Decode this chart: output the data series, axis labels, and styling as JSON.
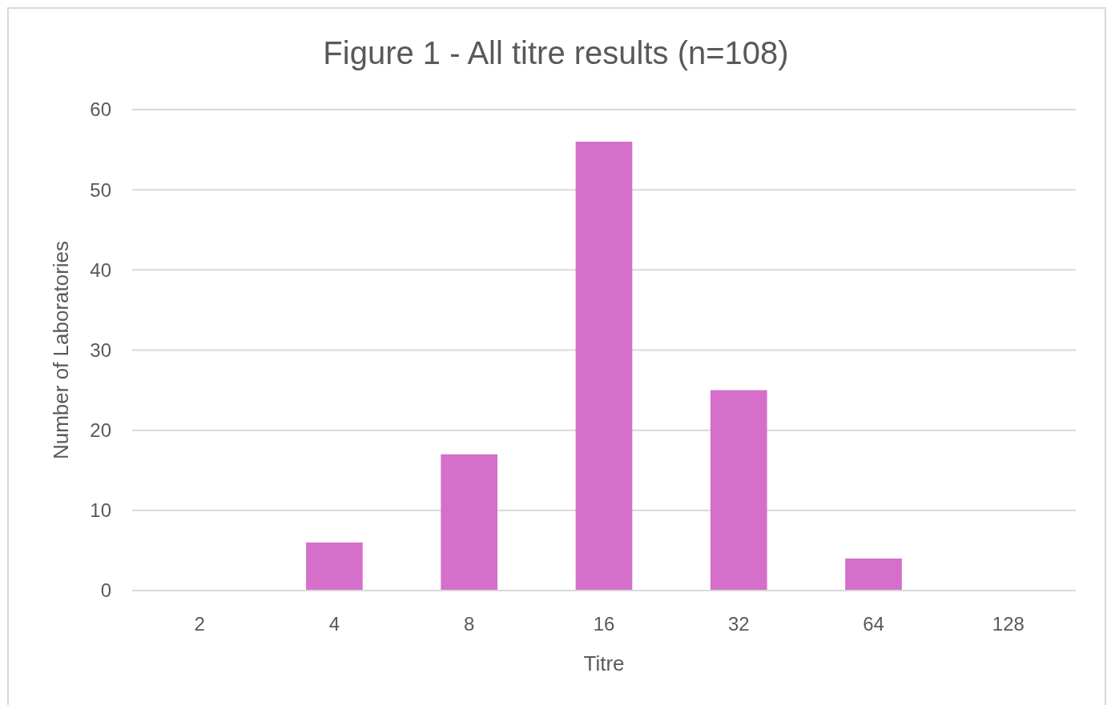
{
  "chart_data": {
    "type": "bar",
    "title": "Figure 1 - All titre results (n=108)",
    "xlabel": "Titre",
    "ylabel": "Number of Laboratories",
    "categories": [
      "2",
      "4",
      "8",
      "16",
      "32",
      "64",
      "128"
    ],
    "values": [
      0,
      6,
      17,
      56,
      25,
      4,
      0
    ],
    "color": "#d56fc9",
    "ylim": [
      0,
      60
    ],
    "yticks": [
      0,
      10,
      20,
      30,
      40,
      50,
      60
    ],
    "grid": "y"
  }
}
